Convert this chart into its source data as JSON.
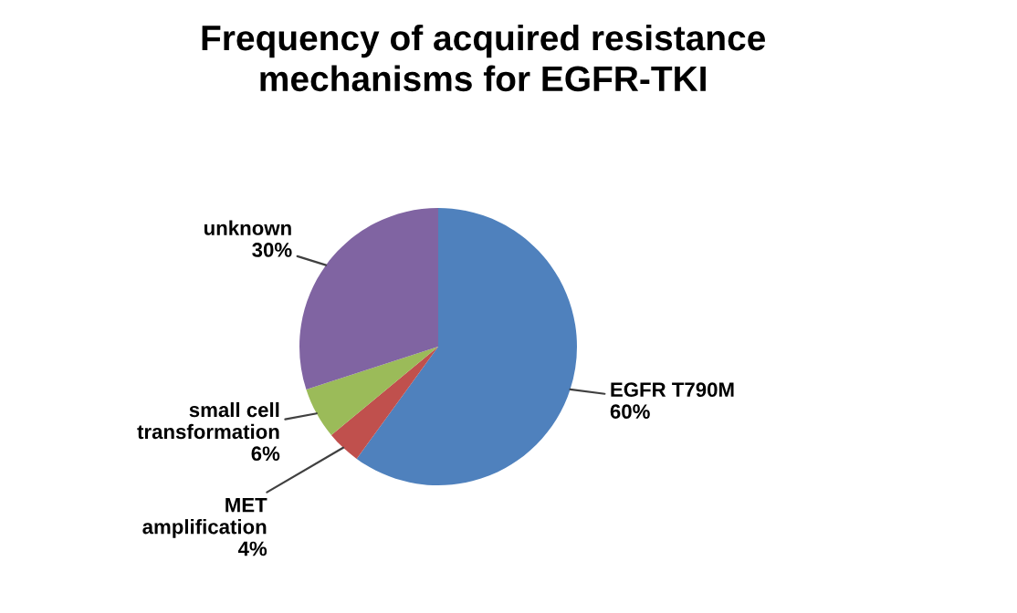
{
  "chart_data": {
    "type": "pie",
    "title": "Frequency of acquired resistance mechanisms for EGFR-TKI",
    "categories": [
      "EGFR T790M",
      "MET amplification",
      "small cell transformation",
      "unknown"
    ],
    "values": [
      60,
      4,
      6,
      30
    ],
    "value_labels": [
      "60%",
      "4%",
      "6%",
      "30%"
    ],
    "colors": [
      "#4f81bd",
      "#c0504d",
      "#9bbb59",
      "#8064a2"
    ],
    "legend": false
  }
}
